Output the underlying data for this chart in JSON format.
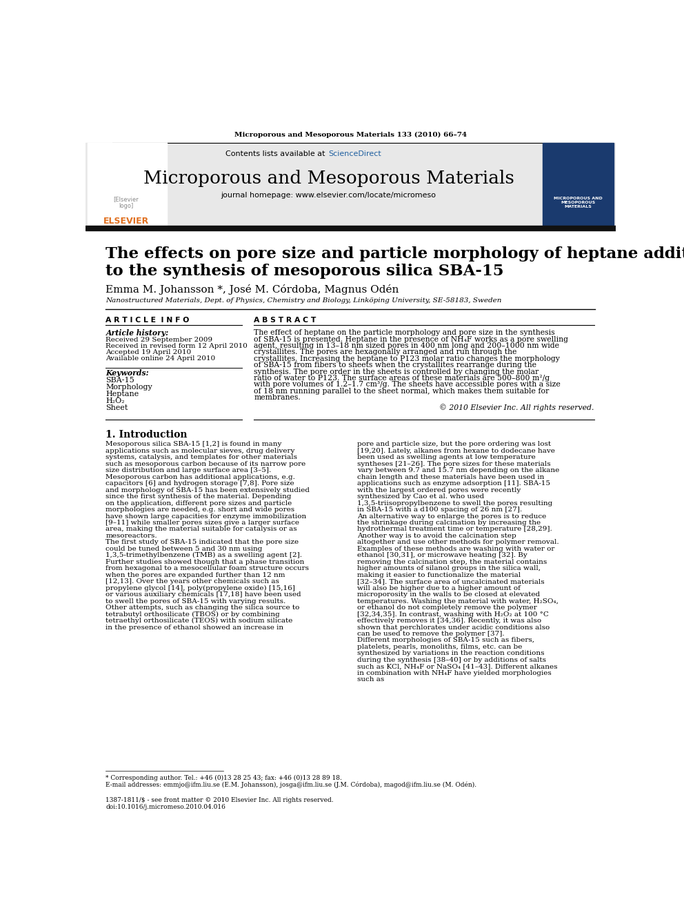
{
  "journal_header": "Microporous and Mesoporous Materials 133 (2010) 66–74",
  "contents_text": "Contents lists available at",
  "sciencedirect_text": "ScienceDirect",
  "journal_name": "Microporous and Mesoporous Materials",
  "journal_homepage": "journal homepage: www.elsevier.com/locate/micromeso",
  "paper_title_line1": "The effects on pore size and particle morphology of heptane additions",
  "paper_title_line2": "to the synthesis of mesoporous silica SBA-15",
  "authors": "Emma M. Johansson *, José M. Córdoba, Magnus Odén",
  "affiliation": "Nanostructured Materials, Dept. of Physics, Chemistry and Biology, Linköping University, SE-58183, Sweden",
  "article_info_header": "A R T I C L E  I N F O",
  "abstract_header": "A B S T R A C T",
  "article_history_header": "Article history:",
  "received1": "Received 29 September 2009",
  "received2": "Received in revised form 12 April 2010",
  "accepted": "Accepted 19 April 2010",
  "available": "Available online 24 April 2010",
  "keywords_header": "Keywords:",
  "keywords": [
    "SBA-15",
    "Morphology",
    "Heptane",
    "H₂O₂",
    "Sheet"
  ],
  "abstract_text": "The effect of heptane on the particle morphology and pore size in the synthesis of SBA-15 is presented. Heptane in the presence of NH₄F works as a pore swelling agent, resulting in 13–18 nm sized pores in 400 nm long and 200–1000 nm wide crystallites. The pores are hexagonally arranged and run through the crystallites. Increasing the heptane to P123 molar ratio changes the morphology of SBA-15 from fibers to sheets when the crystallites rearrange during the synthesis. The pore order in the sheets is controlled by changing the molar ratio of water to P123. The surface areas of these materials are 500–800 m²/g with pore volumes of 1.2–1.7 cm³/g. The sheets have accessible pores with a size of 18 nm running parallel to the sheet normal, which makes them suitable for membranes.",
  "copyright": "© 2010 Elsevier Inc. All rights reserved.",
  "intro_header": "1. Introduction",
  "intro_col1": "   Mesoporous silica SBA-15 [1,2] is found in many applications such as molecular sieves, drug delivery systems, catalysis, and templates for other materials such as mesoporous carbon because of its narrow pore size distribution and large surface area [3–5]. Mesoporous carbon has additional applications, e.g. capacitors [6] and hydrogen storage [7,8]. Pore size and morphology of SBA-15 has been extensively studied since the first synthesis of the material. Depending on the application, different pore sizes and particle morphologies are needed, e.g. short and wide pores have shown large capacities for enzyme immobilization [9–11] while smaller pores sizes give a larger surface area, making the material suitable for catalysis or as mesoreactors.\n   The first study of SBA-15 indicated that the pore size could be tuned between 5 and 30 nm using 1,3,5-trimethylbenzene (TMB) as a swelling agent [2]. Further studies showed though that a phase transition from hexagonal to a mesocellular foam structure occurs when the pores are expanded further than 12 nm [12,13]. Over the years other chemicals such as propylene glycol [14], poly(propylene oxide) [15,16] or various auxiliary chemicals [17,18] have been used to swell the pores of SBA-15 with varying results. Other attempts, such as changing the silica source to tetrabutyl orthosilicate (TBOS) or by combining tetraethyl orthosilicate (TEOS) with sodium silicate in the presence of ethanol showed an increase in",
  "intro_col2": "pore and particle size, but the pore ordering was lost [19,20]. Lately, alkanes from hexane to dodecane have been used as swelling agents at low temperature syntheses [21–26]. The pore sizes for these materials vary between 9.7 and 15.7 nm depending on the alkane chain length and these materials have been used in applications such as enzyme adsorption [11]. SBA-15 with the largest ordered pores were recently synthesized by Cao et al. who used 1,3,5-triisopropylbenzene to swell the pores resulting in SBA-15 with a d100 spacing of 26 nm [27].\n   An alternative way to enlarge the pores is to reduce the shrinkage during calcination by increasing the hydrothermal treatment time or temperature [28,29]. Another way is to avoid the calcination step altogether and use other methods for polymer removal. Examples of these methods are washing with water or ethanol [30,31], or microwave heating [32]. By removing the calcination step, the material contains higher amounts of silanol groups in the silica wall, making it easier to functionalize the material [32–34]. The surface area of uncalcinated materials will also be higher due to a higher amount of microporosity in the walls to be closed at elevated temperatures. Washing the material with water, H₂SO₄, or ethanol do not completely remove the polymer [32,34,35]. In contrast, washing with H₂O₂ at 100 °C effectively removes it [34,36]. Recently, it was also shown that perchlorates under acidic conditions also can be used to remove the polymer [37].\n   Different morphologies of SBA-15 such as fibers, platelets, pearls, monoliths, films, etc. can be synthesized by variations in the reaction conditions during the synthesis [38–40] or by additions of salts such as KCl, NH₄F or NaSO₄ [41–43]. Different alkanes in combination with NH₄F have yielded morphologies such as",
  "footnote1": "* Corresponding author. Tel.: +46 (0)13 28 25 43; fax: +46 (0)13 28 89 18.",
  "footnote2": "E-mail addresses: emmjo@ifm.liu.se (E.M. Johansson), josga@ifm.liu.se (J.M. Córdoba), magod@ifm.liu.se (M. Odén).",
  "footer1": "1387-1811/$ - see front matter © 2010 Elsevier Inc. All rights reserved.",
  "footer2": "doi:10.1016/j.micromeso.2010.04.016",
  "bg_color": "#ffffff",
  "header_bg": "#e8e8e8",
  "black_bar_color": "#111111",
  "blue_color": "#2060a0",
  "orange_color": "#e07020"
}
